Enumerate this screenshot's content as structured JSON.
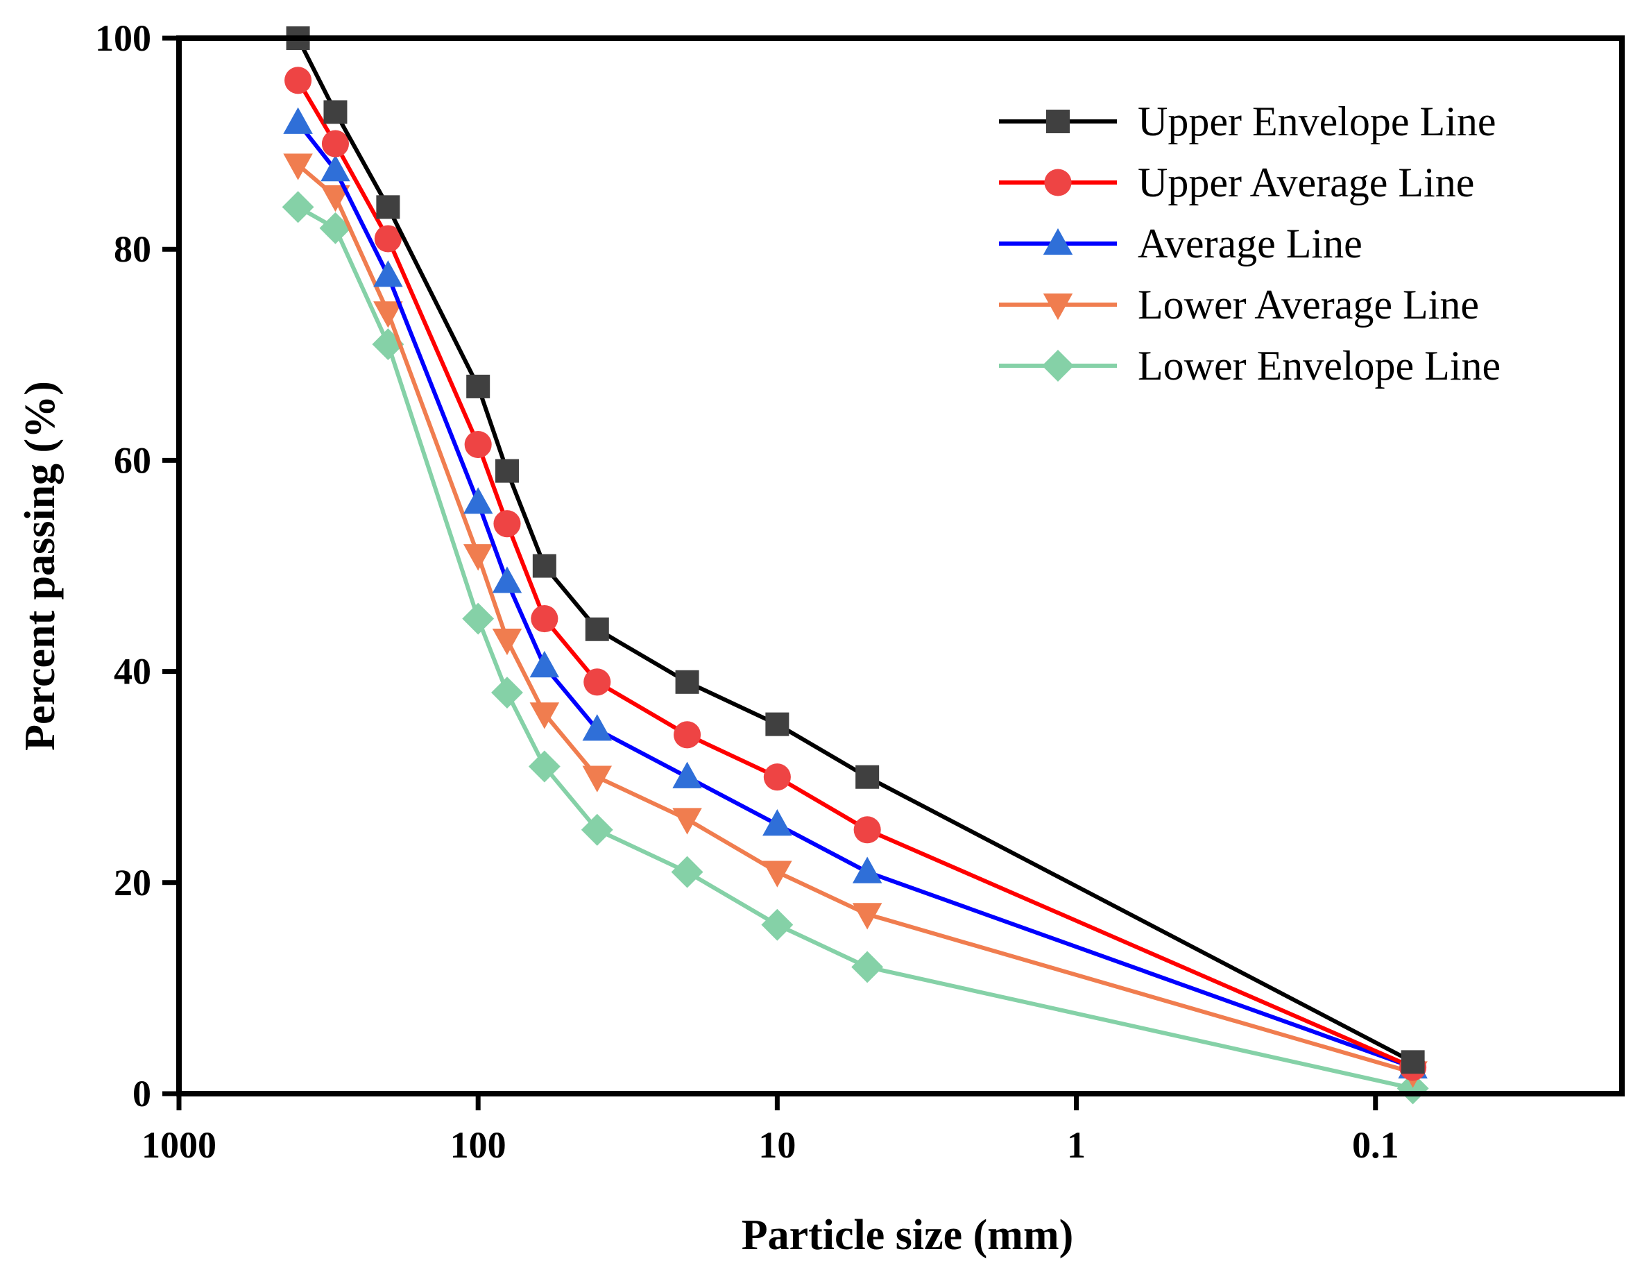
{
  "chart_data": {
    "type": "line",
    "title": "",
    "xlabel": "Particle size (mm)",
    "ylabel": "Percent passing (%)",
    "xscale": "log",
    "x_reversed": true,
    "xlim": [
      1000,
      0.015
    ],
    "ylim": [
      0,
      100
    ],
    "x_ticks": [
      {
        "value": 1000,
        "label": "1000"
      },
      {
        "value": 100,
        "label": "100"
      },
      {
        "value": 10,
        "label": "10"
      },
      {
        "value": 1,
        "label": "1"
      },
      {
        "value": 0.1,
        "label": "0.1"
      }
    ],
    "y_ticks": [
      {
        "value": 0,
        "label": "0"
      },
      {
        "value": 20,
        "label": "20"
      },
      {
        "value": 40,
        "label": "40"
      },
      {
        "value": 60,
        "label": "60"
      },
      {
        "value": 80,
        "label": "80"
      },
      {
        "value": 100,
        "label": "100"
      }
    ],
    "grid": false,
    "legend_position": "top-right",
    "x": [
      400,
      300,
      200,
      100,
      80,
      60,
      40,
      20,
      10,
      5,
      0.075
    ],
    "series": [
      {
        "name": "Upper Envelope Line",
        "color": "#000000",
        "marker": "square",
        "marker_color": "#404040",
        "values": [
          100,
          93,
          84,
          67,
          59,
          50,
          44,
          39,
          35,
          30,
          3
        ]
      },
      {
        "name": "Upper Average Line",
        "color": "#ff0000",
        "marker": "circle",
        "marker_color": "#ee4444",
        "values": [
          96,
          90,
          81,
          61.5,
          54,
          45,
          39,
          34,
          30,
          25,
          2.5
        ]
      },
      {
        "name": "Average Line",
        "color": "#0000ff",
        "marker": "triangle-up",
        "marker_color": "#2f6fd8",
        "values": [
          92,
          87.5,
          77.5,
          56,
          48.5,
          40.5,
          34.5,
          30,
          25.5,
          21,
          2.5
        ]
      },
      {
        "name": "Lower Average Line",
        "color": "#f07d4f",
        "marker": "triangle-down",
        "marker_color": "#f07d4f",
        "values": [
          88,
          85,
          74,
          51,
          43,
          36,
          30,
          26,
          21,
          17,
          2
        ]
      },
      {
        "name": "Lower Envelope Line",
        "color": "#85d1a7",
        "marker": "diamond",
        "marker_color": "#85d1a7",
        "values": [
          84,
          82,
          71,
          45,
          38,
          31,
          25,
          21,
          16,
          12,
          0.5
        ]
      }
    ]
  }
}
